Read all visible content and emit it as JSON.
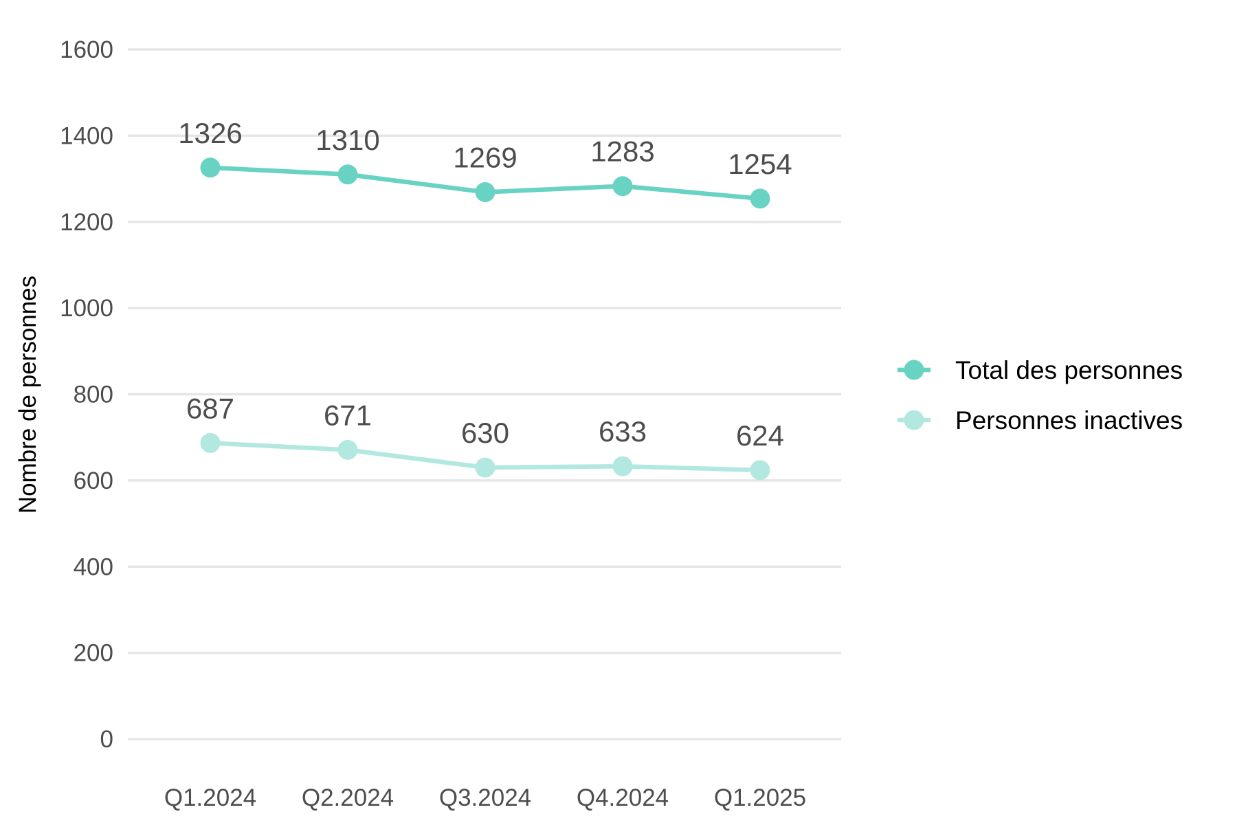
{
  "chart_data": {
    "type": "line",
    "title": "",
    "xlabel": "",
    "ylabel": "Nombre de personnes",
    "categories": [
      "Q1.2024",
      "Q2.2024",
      "Q3.2024",
      "Q4.2024",
      "Q1.2025"
    ],
    "ylim": [
      0,
      1600
    ],
    "yticks": [
      0,
      200,
      400,
      600,
      800,
      1000,
      1200,
      1400,
      1600
    ],
    "grid": "horizontal",
    "legend_position": "right",
    "series": [
      {
        "name": "Total des personnes",
        "color": "#69d3c3",
        "values": [
          1326,
          1310,
          1269,
          1283,
          1254
        ]
      },
      {
        "name": "Personnes inactives",
        "color": "#b3e8e0",
        "values": [
          687,
          671,
          630,
          633,
          624
        ]
      }
    ]
  }
}
